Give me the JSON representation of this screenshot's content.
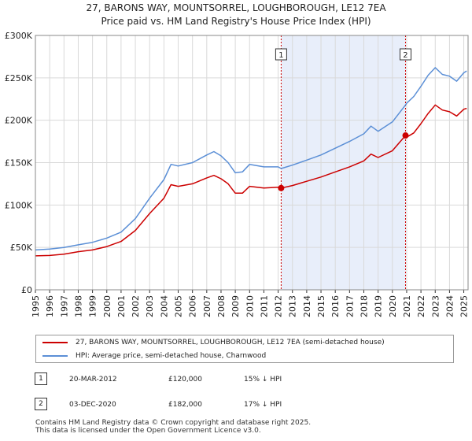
{
  "chart_data": {
    "type": "line",
    "title": "27, BARONS WAY, MOUNTSORREL, LOUGHBOROUGH, LE12 7EA",
    "subtitle": "Price paid vs. HM Land Registry's House Price Index (HPI)",
    "xlabel": "",
    "ylabel": "",
    "xlim": [
      1995,
      2025.3
    ],
    "ylim": [
      0,
      300000
    ],
    "x_ticks": [
      "1995",
      "1996",
      "1997",
      "1998",
      "1999",
      "2000",
      "2001",
      "2002",
      "2003",
      "2004",
      "2005",
      "2006",
      "2007",
      "2008",
      "2009",
      "2010",
      "2011",
      "2012",
      "2013",
      "2014",
      "2015",
      "2016",
      "2017",
      "2018",
      "2019",
      "2020",
      "2021",
      "2022",
      "2023",
      "2024",
      "2025"
    ],
    "y_ticks": [
      {
        "value": 0,
        "label": "£0"
      },
      {
        "value": 50000,
        "label": "£50K"
      },
      {
        "value": 100000,
        "label": "£100K"
      },
      {
        "value": 150000,
        "label": "£150K"
      },
      {
        "value": 200000,
        "label": "£200K"
      },
      {
        "value": 250000,
        "label": "£250K"
      },
      {
        "value": 300000,
        "label": "£300K"
      }
    ],
    "grid": true,
    "shaded_region": {
      "from": 2012.21,
      "to": 2020.92,
      "color": "#e8eefa"
    },
    "series": [
      {
        "name": "27, BARONS WAY, MOUNTSORREL, LOUGHBOROUGH, LE12 7EA (semi-detached house)",
        "color": "#cc0000",
        "x": [
          1995,
          1996,
          1997,
          1998,
          1999,
          2000,
          2001,
          2002,
          2003,
          2004,
          2004.5,
          2005,
          2006,
          2007,
          2007.5,
          2008,
          2008.5,
          2009,
          2009.5,
          2010,
          2011,
          2012,
          2012.21,
          2013,
          2014,
          2015,
          2016,
          2017,
          2018,
          2018.5,
          2019,
          2020,
          2020.92,
          2021,
          2021.5,
          2022,
          2022.5,
          2023,
          2023.5,
          2024,
          2024.5,
          2025,
          2025.2
        ],
        "values": [
          40000,
          40500,
          42000,
          45000,
          47000,
          51000,
          57000,
          70000,
          90000,
          108000,
          124000,
          122000,
          125000,
          132000,
          135000,
          131000,
          125000,
          114000,
          114000,
          122000,
          120000,
          121000,
          120000,
          123000,
          128000,
          133000,
          139000,
          145000,
          152000,
          160000,
          156000,
          164000,
          182000,
          180000,
          185000,
          196000,
          208000,
          218000,
          212000,
          210000,
          205000,
          213000,
          214000
        ]
      },
      {
        "name": "HPI: Average price, semi-detached house, Charnwood",
        "color": "#5b8fd6",
        "x": [
          1995,
          1996,
          1997,
          1998,
          1999,
          2000,
          2001,
          2002,
          2003,
          2004,
          2004.5,
          2005,
          2006,
          2007,
          2007.5,
          2008,
          2008.5,
          2009,
          2009.5,
          2010,
          2011,
          2012,
          2012.21,
          2013,
          2014,
          2015,
          2016,
          2017,
          2018,
          2018.5,
          2019,
          2020,
          2020.92,
          2021,
          2021.5,
          2022,
          2022.5,
          2023,
          2023.5,
          2024,
          2024.5,
          2025,
          2025.2
        ],
        "values": [
          47000,
          48000,
          50000,
          53000,
          56000,
          61000,
          68000,
          84000,
          108000,
          130000,
          148000,
          146000,
          150000,
          159000,
          163000,
          158000,
          150000,
          138000,
          139000,
          148000,
          145000,
          145000,
          143000,
          147000,
          153000,
          159000,
          167000,
          175000,
          184000,
          193000,
          187000,
          198000,
          218000,
          220000,
          228000,
          240000,
          253000,
          262000,
          254000,
          252000,
          246000,
          256000,
          258000
        ]
      }
    ],
    "markers": [
      {
        "id": "1",
        "x": 2012.21,
        "value": 120000
      },
      {
        "id": "2",
        "x": 2020.92,
        "value": 182000
      }
    ]
  },
  "legend": {
    "property_label": "27, BARONS WAY, MOUNTSORREL, LOUGHBOROUGH, LE12 7EA (semi-detached house)",
    "hpi_label": "HPI: Average price, semi-detached house, Charnwood"
  },
  "annotations": [
    {
      "id": "1",
      "date": "20-MAR-2012",
      "price": "£120,000",
      "hpi": "15% ↓ HPI"
    },
    {
      "id": "2",
      "date": "03-DEC-2020",
      "price": "£182,000",
      "hpi": "17% ↓ HPI"
    }
  ],
  "footer": {
    "line1": "Contains HM Land Registry data © Crown copyright and database right 2025.",
    "line2": "This data is licensed under the Open Government Licence v3.0."
  },
  "colors": {
    "property": "#cc0000",
    "hpi": "#5b8fd6",
    "shade": "#e8eefa",
    "grid": "#d9d9d9"
  }
}
